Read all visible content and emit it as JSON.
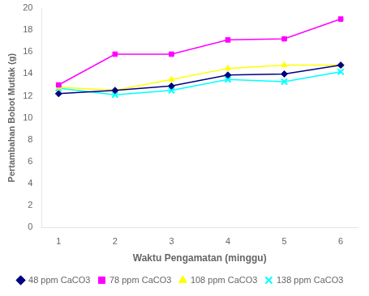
{
  "chart_data": {
    "type": "line",
    "x_label": "Waktu Pengamatan (minggu)",
    "y_label": "Pertambahan Bobot Mutlak (g)",
    "x": [
      1,
      2,
      3,
      4,
      5,
      6
    ],
    "series": [
      {
        "name": "48 ppm CaCO3",
        "color": "#000080",
        "marker": "diamond",
        "values": [
          12.2,
          12.5,
          12.9,
          13.9,
          14.0,
          14.8
        ]
      },
      {
        "name": "78 ppm CaCO3",
        "color": "#FF00FF",
        "marker": "square",
        "values": [
          13.0,
          15.8,
          15.8,
          17.1,
          17.2,
          19.0
        ]
      },
      {
        "name": "108 ppm CaCO3",
        "color": "#FFFF00",
        "marker": "triangle",
        "values": [
          12.8,
          12.5,
          13.5,
          14.5,
          14.8,
          14.8
        ]
      },
      {
        "name": "138 ppm CaCO3",
        "color": "#00FFFF",
        "marker": "x",
        "values": [
          12.7,
          12.1,
          12.5,
          13.5,
          13.3,
          14.2
        ]
      }
    ],
    "xlim": [
      0.7,
      6.3
    ],
    "xticks": [
      1,
      2,
      3,
      4,
      5,
      6
    ],
    "ylim": [
      0,
      20
    ],
    "yticks": [
      0,
      2,
      4,
      6,
      8,
      10,
      12,
      14,
      16,
      18,
      20
    ],
    "grid": false,
    "legend": "bottom"
  }
}
